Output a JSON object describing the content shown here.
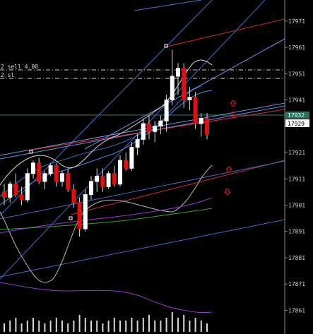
{
  "chart": {
    "price_axis": {
      "ticks": [
        "17971",
        "17961",
        "17951",
        "17941",
        "17932",
        "17929",
        "17921",
        "17911",
        "17901",
        "17891",
        "17881",
        "17871",
        "17861"
      ],
      "current_bid": "17929",
      "current_marker": "17932"
    },
    "orders": [
      {
        "label": "2 sell 4.00"
      },
      {
        "label": "2 sl"
      }
    ],
    "arrows": [
      {
        "type": "up",
        "color": "#e02020"
      },
      {
        "type": "down",
        "color": "#e02020"
      },
      {
        "type": "up",
        "color": "#e02020"
      },
      {
        "type": "down",
        "color": "#e02020"
      }
    ]
  },
  "chart_data": {
    "type": "candlestick",
    "ylim": [
      17852,
      17979
    ],
    "candles": [
      {
        "o": 17906,
        "h": 17909,
        "l": 17901,
        "c": 17904
      },
      {
        "o": 17904,
        "h": 17910,
        "l": 17902,
        "c": 17909
      },
      {
        "o": 17909,
        "h": 17913,
        "l": 17904,
        "c": 17905
      },
      {
        "o": 17905,
        "h": 17908,
        "l": 17901,
        "c": 17903
      },
      {
        "o": 17903,
        "h": 17915,
        "l": 17902,
        "c": 17913
      },
      {
        "o": 17913,
        "h": 17918,
        "l": 17911,
        "c": 17917
      },
      {
        "o": 17917,
        "h": 17919,
        "l": 17909,
        "c": 17910
      },
      {
        "o": 17910,
        "h": 17914,
        "l": 17907,
        "c": 17913
      },
      {
        "o": 17913,
        "h": 17917,
        "l": 17912,
        "c": 17916
      },
      {
        "o": 17916,
        "h": 17917,
        "l": 17908,
        "c": 17910
      },
      {
        "o": 17910,
        "h": 17914,
        "l": 17908,
        "c": 17913
      },
      {
        "o": 17913,
        "h": 17915,
        "l": 17906,
        "c": 17907
      },
      {
        "o": 17907,
        "h": 17909,
        "l": 17900,
        "c": 17902
      },
      {
        "o": 17902,
        "h": 17904,
        "l": 17889,
        "c": 17892
      },
      {
        "o": 17892,
        "h": 17907,
        "l": 17891,
        "c": 17905
      },
      {
        "o": 17905,
        "h": 17912,
        "l": 17903,
        "c": 17910
      },
      {
        "o": 17910,
        "h": 17915,
        "l": 17906,
        "c": 17912
      },
      {
        "o": 17912,
        "h": 17915,
        "l": 17906,
        "c": 17908
      },
      {
        "o": 17908,
        "h": 17914,
        "l": 17907,
        "c": 17913
      },
      {
        "o": 17913,
        "h": 17916,
        "l": 17908,
        "c": 17909
      },
      {
        "o": 17909,
        "h": 17920,
        "l": 17908,
        "c": 17918
      },
      {
        "o": 17918,
        "h": 17921,
        "l": 17914,
        "c": 17915
      },
      {
        "o": 17915,
        "h": 17925,
        "l": 17914,
        "c": 17923
      },
      {
        "o": 17923,
        "h": 17928,
        "l": 17920,
        "c": 17926
      },
      {
        "o": 17926,
        "h": 17934,
        "l": 17924,
        "c": 17932
      },
      {
        "o": 17932,
        "h": 17935,
        "l": 17926,
        "c": 17929
      },
      {
        "o": 17929,
        "h": 17933,
        "l": 17925,
        "c": 17931
      },
      {
        "o": 17931,
        "h": 17935,
        "l": 17928,
        "c": 17933
      },
      {
        "o": 17933,
        "h": 17943,
        "l": 17929,
        "c": 17941
      },
      {
        "o": 17941,
        "h": 17960,
        "l": 17939,
        "c": 17950
      },
      {
        "o": 17950,
        "h": 17955,
        "l": 17943,
        "c": 17953
      },
      {
        "o": 17953,
        "h": 17955,
        "l": 17938,
        "c": 17941
      },
      {
        "o": 17941,
        "h": 17946,
        "l": 17937,
        "c": 17942
      },
      {
        "o": 17942,
        "h": 17944,
        "l": 17930,
        "c": 17932
      },
      {
        "o": 17932,
        "h": 17936,
        "l": 17927,
        "c": 17934
      },
      {
        "o": 17934,
        "h": 17936,
        "l": 17926,
        "c": 17928
      }
    ],
    "volume": [
      3,
      4,
      5,
      3,
      4,
      5,
      4,
      3,
      4,
      5,
      4,
      3,
      4,
      6,
      5,
      4,
      4,
      3,
      4,
      5,
      4,
      4,
      5,
      4,
      5,
      6,
      4,
      4,
      5,
      7,
      5,
      6,
      4,
      5,
      4,
      3
    ]
  }
}
